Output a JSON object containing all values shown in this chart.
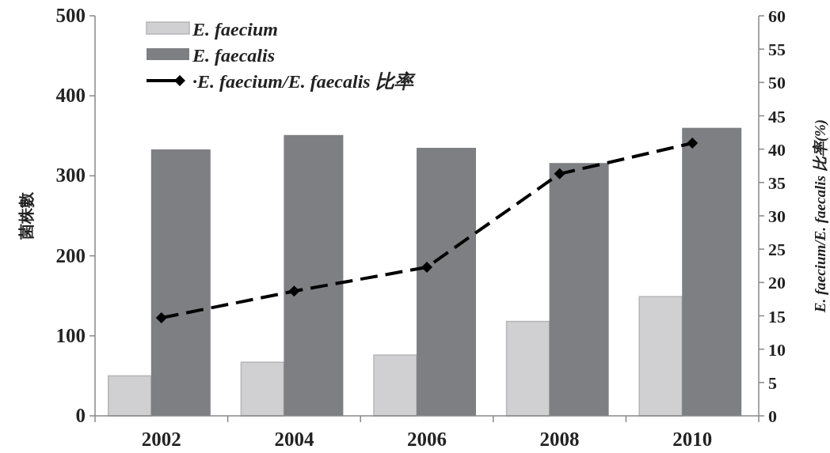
{
  "chart_data": {
    "type": "bar",
    "categories": [
      "2002",
      "2004",
      "2006",
      "2008",
      "2010"
    ],
    "series": [
      {
        "name": "E. faecium",
        "color": "#d0d0d2",
        "values": [
          50,
          67,
          76,
          118,
          149
        ]
      },
      {
        "name": "E. faecalis",
        "color": "#7e7f83",
        "values": [
          333,
          351,
          335,
          316,
          360
        ]
      },
      {
        "name": "·E. faecium/E. faecalis 比率",
        "color": "#000000",
        "type": "line",
        "axis": "y2",
        "marker": "diamond",
        "line_style": "dashed",
        "values": [
          14.7,
          18.7,
          22.3,
          36.3,
          40.9
        ]
      }
    ],
    "ylabel": "菌株數",
    "y2label": "E. faecium/E. faecalis 比率(%)",
    "ylim": [
      0,
      500
    ],
    "yticks": [
      0,
      100,
      200,
      300,
      400,
      500
    ],
    "y2lim": [
      0,
      60
    ],
    "y2ticks": [
      0,
      5,
      10,
      15,
      20,
      25,
      30,
      35,
      40,
      45,
      50,
      55,
      60
    ],
    "grid": false,
    "legend": "top left"
  }
}
